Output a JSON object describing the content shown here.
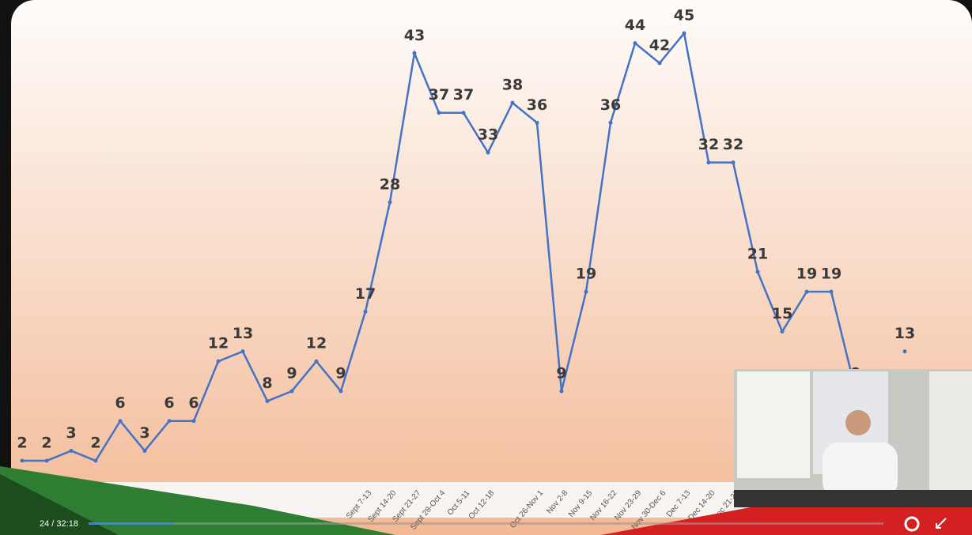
{
  "chart_data": {
    "type": "line",
    "categories": [
      null,
      null,
      null,
      null,
      null,
      null,
      null,
      null,
      null,
      null,
      null,
      null,
      null,
      null,
      "Sept 7-13",
      "Sept 14-20",
      "Sept 21-27",
      "Sept 28-Oct 4",
      "Oct 5-11",
      "Oct 12-18",
      null,
      "Oct 26-Nov 1",
      "Nov 2-8",
      "Nov 9-15",
      "Nov 16-22",
      "Nov 23-29",
      "Nov 30-Dec 6",
      "Dec 7-13",
      "Dec 14-20",
      "Dec 21-27",
      null,
      null,
      null,
      null,
      null,
      null,
      null
    ],
    "values": [
      2,
      2,
      3,
      2,
      6,
      3,
      6,
      6,
      12,
      13,
      8,
      9,
      12,
      9,
      17,
      28,
      43,
      37,
      37,
      33,
      38,
      36,
      9,
      19,
      36,
      44,
      42,
      45,
      32,
      32,
      21,
      15,
      19,
      19,
      9,
      null,
      13
    ],
    "color": "#4472c4"
  },
  "player": {
    "time": "24 / 32:18"
  }
}
